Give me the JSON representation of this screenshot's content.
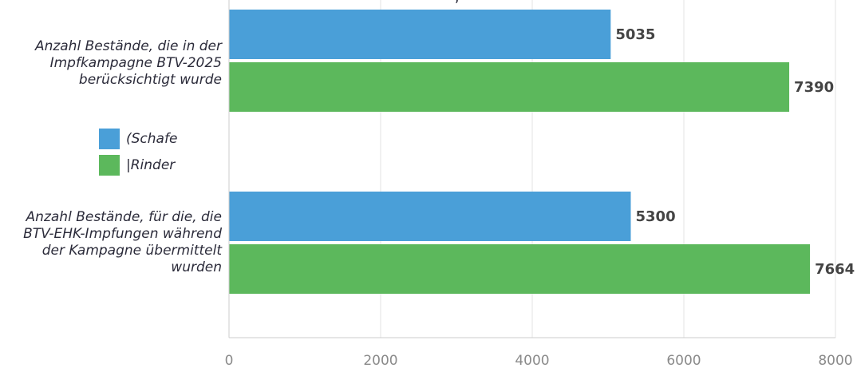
{
  "chart_data": {
    "type": "bar",
    "orientation": "horizontal",
    "categories": [
      "Anzahl Bestände, die in der Impfkampagne BTV-2025 berücksichtigt wurde",
      "Anzahl Bestände, für die, die BTV-EHK-Impfungen während der Kampagne übermittelt wurden"
    ],
    "category_lines": [
      [
        "Anzahl Bestände, die in der",
        "Impfkampagne BTV-2025",
        "berücksichtigt wurde"
      ],
      [
        "Anzahl Bestände, für die, die",
        "BTV-EHK-Impfungen während",
        "der Kampagne übermittelt",
        "wurden"
      ]
    ],
    "series": [
      {
        "name": "Schafe",
        "values": [
          5035,
          5300
        ],
        "color": "#4a9fd8"
      },
      {
        "name": "Rinder",
        "values": [
          7390,
          7664
        ],
        "color": "#5cb85c"
      }
    ],
    "xlim": [
      0,
      8000
    ],
    "xticks": [
      0,
      2000,
      4000,
      6000,
      8000
    ],
    "grid": true,
    "legend_position": "left-middle",
    "legend_labels": [
      "(Schafe",
      "|Rinder"
    ]
  }
}
